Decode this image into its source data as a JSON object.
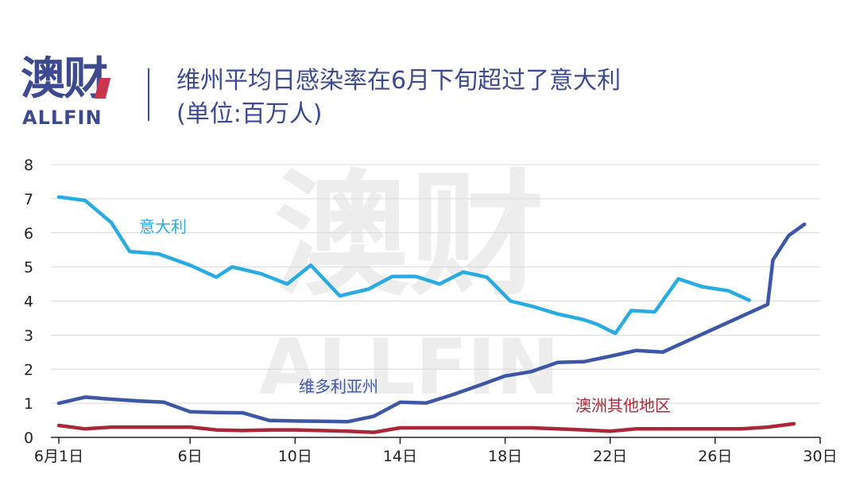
{
  "brand": {
    "logo_cn": "澳财",
    "logo_en": "ALLFIN",
    "color": "#3d4a8f",
    "accent": "#c8354c"
  },
  "watermark": {
    "cn": "澳财",
    "en": "ALLFIN"
  },
  "header": {
    "title_line1": "维州平均日感染率在6月下旬超过了意大利",
    "title_line2": "(单位:百万人)"
  },
  "chart_data": {
    "type": "line",
    "x": [
      1,
      2,
      3,
      4,
      5,
      6,
      7,
      8,
      9,
      10,
      11,
      12,
      13,
      14,
      15,
      16,
      17,
      18,
      19,
      20,
      21,
      22,
      23,
      24,
      25,
      26,
      27,
      28,
      29
    ],
    "x_ticks": [
      {
        "x": 1,
        "label": "6月1日"
      },
      {
        "x": 6,
        "label": "6日"
      },
      {
        "x": 10,
        "label": "10日"
      },
      {
        "x": 14,
        "label": "14日"
      },
      {
        "x": 18,
        "label": "18日"
      },
      {
        "x": 22,
        "label": "22日"
      },
      {
        "x": 26,
        "label": "26日"
      },
      {
        "x": 30,
        "label": "30日"
      }
    ],
    "xlim": [
      1,
      30
    ],
    "ylim": [
      0,
      8
    ],
    "y_ticks": [
      0,
      1,
      2,
      3,
      4,
      5,
      6,
      7,
      8
    ],
    "grid": "horizontal",
    "series": [
      {
        "name": "意大利",
        "color": "#29abe2",
        "x": [
          1,
          2,
          3,
          3.7,
          4.8,
          6,
          7,
          7.6,
          8.7,
          9.7,
          10.6,
          11.7,
          12.8,
          13.7,
          14.6,
          15.5,
          16.4,
          17.3,
          18.2,
          19,
          20,
          21,
          21.5,
          22.2,
          22.8,
          23.7,
          24.6,
          25.5,
          26.5,
          27.3
        ],
        "values": [
          7.05,
          6.95,
          6.3,
          5.45,
          5.38,
          5.05,
          4.7,
          5.0,
          4.8,
          4.5,
          5.05,
          4.15,
          4.35,
          4.72,
          4.72,
          4.5,
          4.85,
          4.7,
          4.0,
          3.85,
          3.62,
          3.45,
          3.32,
          3.05,
          3.72,
          3.68,
          4.65,
          4.42,
          4.3,
          4.02
        ]
      },
      {
        "name": "维多利亚州",
        "color": "#3d56a6",
        "x": [
          1,
          2,
          3,
          4,
          5,
          6,
          7,
          8,
          9,
          10,
          11,
          12,
          13,
          14,
          15,
          16,
          17,
          18,
          19,
          20,
          21,
          22,
          23,
          24,
          25,
          26,
          27,
          28,
          29
        ],
        "values": [
          1.0,
          1.18,
          1.12,
          1.07,
          1.03,
          0.75,
          0.73,
          0.72,
          0.5,
          0.48,
          0.47,
          0.46,
          0.62,
          1.03,
          1.01,
          1.25,
          1.52,
          1.8,
          1.93,
          2.2,
          2.22,
          2.38,
          2.55,
          2.5,
          2.85,
          3.2,
          3.55,
          3.9,
          6.25
        ],
        "tail": {
          "x": [
            28.2,
            28.8,
            29.4
          ],
          "values": [
            5.2,
            5.92,
            6.25
          ]
        }
      },
      {
        "name": "澳洲其他地区",
        "color": "#a8283a",
        "x": [
          1,
          2,
          3,
          4,
          5,
          6,
          7,
          8,
          9,
          10,
          11,
          12,
          13,
          14,
          15,
          16,
          17,
          18,
          19,
          20,
          21,
          22,
          23,
          24,
          25,
          26,
          27,
          28,
          29
        ],
        "values": [
          0.35,
          0.25,
          0.3,
          0.3,
          0.3,
          0.3,
          0.22,
          0.2,
          0.22,
          0.22,
          0.2,
          0.18,
          0.15,
          0.28,
          0.28,
          0.28,
          0.28,
          0.28,
          0.28,
          0.25,
          0.22,
          0.18,
          0.25,
          0.25,
          0.25,
          0.25,
          0.25,
          0.3,
          0.4
        ]
      }
    ]
  }
}
